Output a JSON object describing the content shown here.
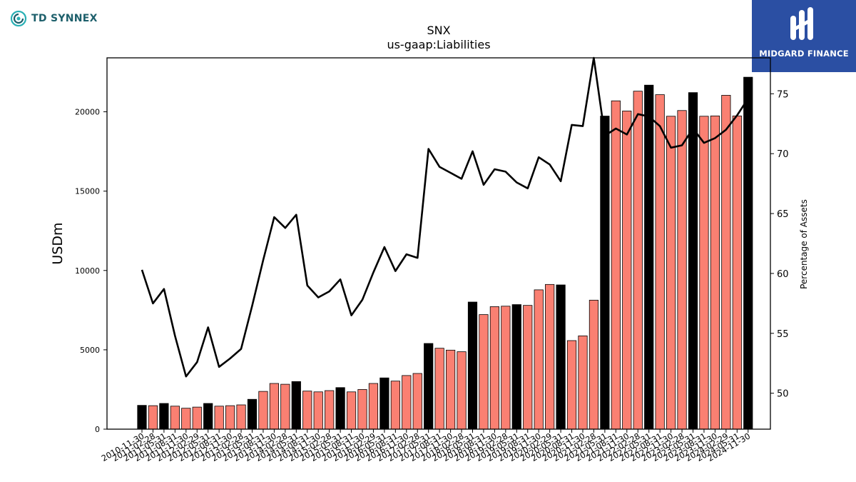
{
  "branding": {
    "left_logo_text": "TD SYNNEX",
    "right_logo_text": "MIDGARD FINANCE",
    "right_logo_color": "#2b4fa3",
    "left_logo_color": "#1d5f6b"
  },
  "chart_data": {
    "type": "bar",
    "title": "SNX",
    "subtitle": "us-gaap:Liabilities",
    "ylabel": "USDm",
    "ylabel_right": "Percentage of Assets",
    "ylim": [
      0,
      23400
    ],
    "ylim_right": [
      47,
      78
    ],
    "yticks": [
      0,
      5000,
      10000,
      15000,
      20000
    ],
    "yticks_right": [
      50,
      55,
      60,
      65,
      70,
      75
    ],
    "colors": {
      "bar_quarter": "#fa8072",
      "bar_fiscal_year_end": "#000000",
      "line": "#000000"
    },
    "categories": [
      "2010-11-30",
      "2011-02-28",
      "2011-05-31",
      "2011-08-31",
      "2011-11-30",
      "2012-02-29",
      "2012-05-31",
      "2012-08-31",
      "2012-11-30",
      "2013-02-28",
      "2013-05-31",
      "2013-08-31",
      "2013-11-30",
      "2014-02-28",
      "2014-05-31",
      "2014-08-31",
      "2014-11-30",
      "2015-02-28",
      "2015-05-31",
      "2015-08-31",
      "2015-11-30",
      "2016-02-29",
      "2016-05-31",
      "2016-08-31",
      "2016-11-30",
      "2017-02-28",
      "2017-05-31",
      "2017-08-31",
      "2017-11-30",
      "2018-02-28",
      "2018-05-31",
      "2018-08-31",
      "2018-11-30",
      "2019-02-28",
      "2019-05-31",
      "2019-08-31",
      "2019-11-30",
      "2020-02-29",
      "2020-05-31",
      "2020-08-31",
      "2020-11-30",
      "2021-02-28",
      "2021-05-31",
      "2021-08-31",
      "2021-11-30",
      "2022-02-28",
      "2022-05-31",
      "2022-08-31",
      "2022-11-30",
      "2023-02-28",
      "2023-05-31",
      "2023-08-31",
      "2023-11-30",
      "2024-02-29",
      "2024-05-31",
      "2024-11-30"
    ],
    "tick_labels": [
      "2010-11-30",
      "2011-02-28",
      "2011-05-31",
      "2011-08-31",
      "2011-11-30",
      "2012-02-29",
      "2012-05-31",
      "2012-08-31",
      "2012-11-30",
      "2013-02-28",
      "2013-05-31",
      "2013-08-31",
      "2013-11-30",
      "2014-02-28",
      "2014-05-31",
      "2014-08-31",
      "2014-11-30",
      "2015-02-28",
      "2015-05-31",
      "2015-08-31",
      "2015-11-30",
      "2016-02-29",
      "2016-05-31",
      "2016-08-31",
      "2016-11-30",
      "2017-02-28",
      "2017-05-31",
      "2017-08-31",
      "2017-11-30",
      "2018-02-28",
      "2018-05-31",
      "2018-08-31",
      "2018-11-30",
      "2019-02-28",
      "2019-05-31",
      "2019-08-31",
      "2019-11-30",
      "2020-02-29",
      "2020-05-31",
      "2020-08-31",
      "2020-11-30",
      "2021-02-28",
      "2021-05-31",
      "2021-08-31",
      "2021-11-30",
      "2022-02-28",
      "2022-05-31",
      "2022-08-31",
      "2022-11-30",
      "2023-02-28",
      "2023-05-31",
      "2023-08-31",
      "2023-11-30",
      "2024-02-29",
      "2024-05-31",
      "2024-11-30"
    ],
    "fiscal_year_end": [
      true,
      false,
      true,
      false,
      false,
      false,
      true,
      false,
      false,
      false,
      true,
      false,
      false,
      false,
      true,
      false,
      false,
      false,
      true,
      false,
      false,
      false,
      true,
      false,
      false,
      false,
      true,
      false,
      false,
      false,
      true,
      false,
      false,
      false,
      true,
      false,
      false,
      false,
      true,
      false,
      false,
      false,
      true,
      false,
      false,
      false,
      true,
      false,
      false,
      false,
      true,
      false,
      false,
      false,
      false,
      true
    ],
    "series": [
      {
        "axis": "left",
        "values": [
          1500,
          1480,
          1620,
          1450,
          1320,
          1390,
          1620,
          1450,
          1480,
          1530,
          1880,
          2380,
          2880,
          2830,
          3000,
          2400,
          2350,
          2430,
          2620,
          2350,
          2500,
          2880,
          3230,
          3030,
          3380,
          3510,
          5400,
          5100,
          4980,
          4880,
          8010,
          7220,
          7720,
          7750,
          7850,
          7800,
          8780,
          9120,
          9090,
          5580,
          5880,
          8130,
          19730,
          20690,
          20050,
          21300,
          21680,
          21080,
          19720,
          20080,
          21210,
          19720,
          19740,
          21040,
          19740,
          22180
        ]
      },
      {
        "type": "line",
        "axis": "right",
        "values": [
          60.3,
          57.5,
          58.7,
          54.8,
          51.4,
          52.6,
          55.5,
          52.2,
          52.9,
          53.7,
          57.3,
          61.1,
          64.7,
          63.8,
          64.9,
          59.0,
          58.0,
          58.5,
          59.5,
          56.5,
          57.8,
          60.1,
          62.2,
          60.2,
          61.6,
          61.3,
          70.4,
          68.9,
          68.4,
          67.9,
          70.2,
          67.4,
          68.7,
          68.5,
          67.6,
          67.1,
          69.7,
          69.1,
          67.7,
          72.4,
          72.3,
          78.0,
          71.5,
          72.1,
          71.6,
          73.3,
          73.1,
          72.3,
          70.5,
          70.7,
          72.1,
          70.9,
          71.3,
          72.0,
          73.2,
          74.6
        ]
      }
    ]
  }
}
